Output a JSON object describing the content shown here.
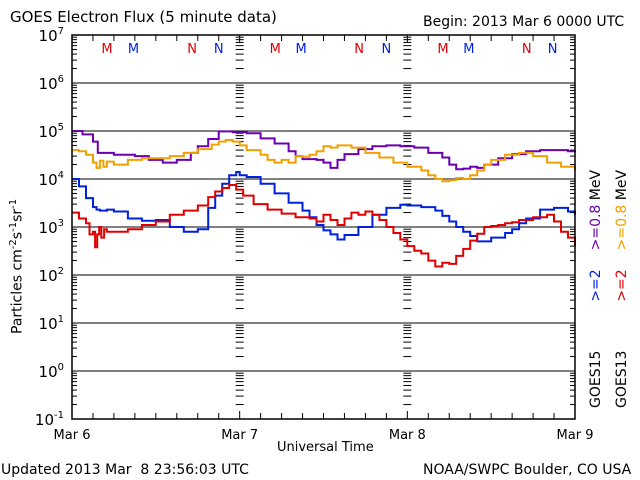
{
  "chart_data": {
    "type": "line",
    "title": "GOES Electron Flux (5 minute data)",
    "subtitle": "Begin: 2013 Mar 6 0000 UTC",
    "xlabel": "Universal Time",
    "ylabel": "Particles cm⁻²s⁻¹sr⁻¹",
    "ylabel_parts": {
      "base": "Particles cm",
      "exp1": "-2",
      "s": "s",
      "exp2": "-1",
      "sr": "sr",
      "exp3": "-1"
    },
    "yscale": "log",
    "ylim": [
      0.1,
      10000000
    ],
    "xlim_hours": [
      0,
      72
    ],
    "x_tick_labels": [
      "Mar 6",
      "Mar 7",
      "Mar 8",
      "Mar 9"
    ],
    "y_tick_labels": [
      {
        "exp": "7",
        "value": 10000000
      },
      {
        "exp": "6",
        "value": 1000000
      },
      {
        "exp": "5",
        "value": 100000
      },
      {
        "exp": "4",
        "value": 10000
      },
      {
        "exp": "3",
        "value": 1000
      },
      {
        "exp": "2",
        "value": 100
      },
      {
        "exp": "1",
        "value": 10
      },
      {
        "exp": "0",
        "value": 1
      },
      {
        "exp": "-1",
        "value": 0.1
      }
    ],
    "threshold": {
      "value": 1000,
      "style": "dashed"
    },
    "grid": "horizontal at decades",
    "markers": [
      {
        "label": "M",
        "color": "#e00000",
        "hour": 5.0
      },
      {
        "label": "M",
        "color": "#0020e0",
        "hour": 8.8
      },
      {
        "label": "N",
        "color": "#e00000",
        "hour": 17.2
      },
      {
        "label": "N",
        "color": "#0020e0",
        "hour": 21.0
      },
      {
        "label": "M",
        "color": "#e00000",
        "hour": 29.1
      },
      {
        "label": "M",
        "color": "#0020e0",
        "hour": 32.8
      },
      {
        "label": "N",
        "color": "#e00000",
        "hour": 41.1
      },
      {
        "label": "N",
        "color": "#0020e0",
        "hour": 45.0
      },
      {
        "label": "M",
        "color": "#e00000",
        "hour": 53.1
      },
      {
        "label": "M",
        "color": "#0020e0",
        "hour": 56.8
      },
      {
        "label": "N",
        "color": "#e00000",
        "hour": 65.1
      },
      {
        "label": "N",
        "color": "#0020e0",
        "hour": 68.8
      }
    ],
    "series": [
      {
        "name": "GOES15 >=0.8 MeV",
        "color": "#6a00b0",
        "hours": [
          0,
          1.5,
          3,
          3.7,
          4.5,
          6,
          9,
          11,
          13,
          15,
          17,
          18,
          19.5,
          21,
          23,
          25,
          27,
          29,
          31,
          32,
          33,
          35,
          36,
          37,
          38,
          39,
          41,
          43,
          45,
          47,
          49,
          51,
          53,
          54,
          55,
          56,
          57,
          58,
          59,
          61,
          63,
          65,
          67,
          69,
          71,
          72
        ],
        "values": [
          100000,
          85000,
          60000,
          35000,
          35000,
          32000,
          30000,
          25000,
          22000,
          25000,
          35000,
          48000,
          68000,
          98000,
          95000,
          90000,
          70000,
          55000,
          38000,
          30000,
          26000,
          25000,
          22000,
          17000,
          25000,
          33000,
          42000,
          48000,
          50000,
          48000,
          45000,
          35000,
          28000,
          20000,
          16000,
          16500,
          18000,
          17000,
          20000,
          27000,
          33000,
          38000,
          40000,
          40000,
          38000,
          36000
        ]
      },
      {
        "name": "GOES15 >=2 MeV",
        "color": "#0020e0",
        "hours": [
          0,
          1,
          2,
          3,
          3.5,
          4,
          5,
          6,
          8,
          10,
          12,
          14,
          16,
          18,
          19.5,
          20.5,
          21.5,
          22.5,
          23.5,
          24,
          25,
          27,
          29,
          31,
          33,
          34,
          35,
          36,
          37,
          38,
          39,
          41,
          43,
          45,
          47,
          48,
          50,
          52,
          53,
          54,
          55,
          56,
          57,
          58,
          60,
          62,
          63,
          64,
          65,
          67,
          69,
          71,
          72
        ],
        "values": [
          10000,
          7000,
          4000,
          2600,
          2300,
          2200,
          2300,
          2100,
          1500,
          1350,
          1400,
          1000,
          800,
          900,
          2500,
          4500,
          8000,
          12000,
          14000,
          12000,
          11000,
          8000,
          5000,
          3200,
          2200,
          1600,
          1100,
          850,
          700,
          550,
          680,
          1000,
          1800,
          2500,
          2900,
          2800,
          2600,
          2200,
          1700,
          1300,
          1000,
          800,
          650,
          500,
          600,
          750,
          900,
          1200,
          1500,
          2300,
          2500,
          2100,
          1800
        ]
      },
      {
        "name": "GOES13 >=0.8 MeV",
        "color": "#f0a000",
        "hours": [
          0,
          1,
          2,
          3,
          3.5,
          4,
          4.5,
          5,
          6,
          8,
          10,
          12,
          14,
          16,
          18,
          20,
          21,
          22,
          23,
          24,
          25,
          27,
          28,
          29,
          30,
          31,
          32,
          33,
          34,
          35,
          36,
          37,
          38,
          40,
          42,
          44,
          46,
          48,
          50,
          51,
          52,
          53,
          54,
          55,
          56,
          57,
          58,
          59,
          60,
          62,
          64,
          66,
          68,
          70,
          72
        ],
        "values": [
          40000,
          38000,
          32000,
          22000,
          17000,
          24000,
          18000,
          23000,
          20000,
          25000,
          27000,
          27000,
          30000,
          35000,
          42000,
          52000,
          60000,
          65000,
          60000,
          50000,
          40000,
          32000,
          25000,
          22000,
          25000,
          22000,
          30000,
          29000,
          32000,
          38000,
          48000,
          45000,
          50000,
          45000,
          35000,
          28000,
          22000,
          18000,
          15000,
          12000,
          10000,
          9000,
          9500,
          10500,
          10000,
          12000,
          15000,
          20000,
          25000,
          32000,
          35000,
          30000,
          22000,
          18000,
          15000
        ]
      },
      {
        "name": "GOES13 >=2 MeV",
        "color": "#e00000",
        "hours": [
          0,
          1,
          2,
          2.5,
          3,
          3.3,
          3.6,
          3.9,
          4.2,
          4.6,
          5,
          6,
          8,
          10,
          12,
          14,
          16,
          18,
          19.5,
          20.5,
          21.5,
          22.5,
          23.5,
          24.5,
          26,
          28,
          30,
          32,
          34,
          35,
          36,
          37,
          38,
          39,
          40,
          41,
          42,
          43,
          44,
          45,
          46,
          47,
          48,
          49,
          50,
          51,
          52,
          53,
          54,
          55,
          56,
          57,
          58,
          59,
          60,
          61,
          62,
          63,
          64,
          66,
          68,
          69,
          70,
          71,
          72
        ],
        "values": [
          2000,
          1500,
          1200,
          700,
          800,
          380,
          700,
          1000,
          600,
          900,
          800,
          800,
          900,
          1100,
          1300,
          1800,
          2200,
          2800,
          4200,
          5500,
          6500,
          7500,
          6000,
          4500,
          3000,
          2300,
          1900,
          1600,
          1500,
          1300,
          1800,
          1400,
          1100,
          1500,
          2000,
          1800,
          2100,
          1800,
          1400,
          1000,
          750,
          550,
          400,
          320,
          280,
          200,
          150,
          180,
          170,
          250,
          350,
          520,
          720,
          1000,
          1050,
          1100,
          1200,
          1250,
          1400,
          1600,
          1800,
          1300,
          800,
          600,
          400
        ]
      }
    ],
    "legend": {
      "placement": "right (rotated)",
      "rows": [
        {
          "satellite": "GOES15",
          "hi_label": ">=2",
          "hi_color": "#0020e0",
          "lo_label": ">=0.8",
          "lo_color": "#6a00b0",
          "unit": "MeV"
        },
        {
          "satellite": "GOES13",
          "hi_label": ">=2",
          "hi_color": "#e00000",
          "lo_label": ">=0.8",
          "lo_color": "#f0a000",
          "unit": "MeV"
        }
      ]
    }
  },
  "footer": {
    "updated": "Updated 2013 Mar  8 23:56:03 UTC",
    "credit": "NOAA/SWPC Boulder, CO USA"
  }
}
